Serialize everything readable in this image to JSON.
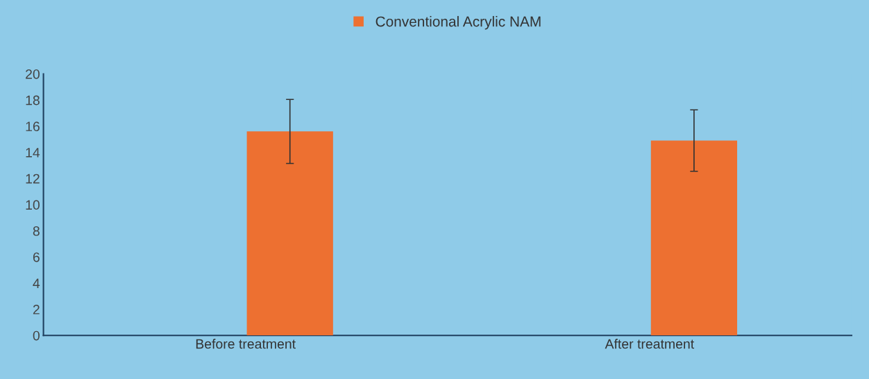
{
  "chart_data": {
    "type": "bar",
    "categories": [
      "Before treatment",
      "After treatment"
    ],
    "series": [
      {
        "name": "Conventional Acrylic NAM",
        "color": "#ed7031",
        "values": [
          15.6,
          14.9
        ],
        "errors": [
          2.45,
          2.35
        ]
      }
    ],
    "ylim": [
      0,
      20
    ],
    "yticks": [
      0,
      2,
      4,
      6,
      8,
      10,
      12,
      14,
      16,
      18,
      20
    ],
    "grid": false,
    "legend": "top"
  }
}
